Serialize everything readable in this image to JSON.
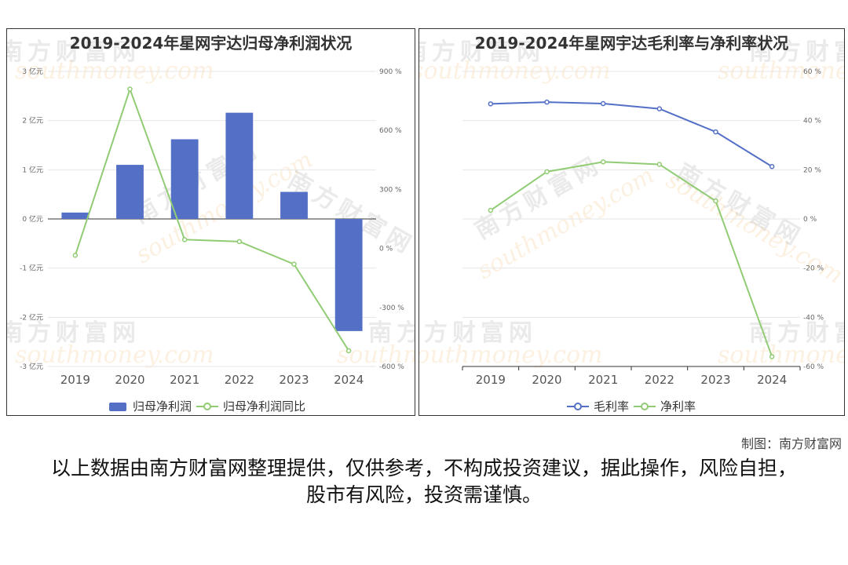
{
  "left_chart": {
    "title": "2019-2024年星网宇达归母净利润状况",
    "legend": [
      "归母净利润",
      "归母净利润同比"
    ]
  },
  "right_chart": {
    "title": "2019-2024年星网宇达毛利率与净利率状况",
    "legend": [
      "毛利率",
      "净利率"
    ]
  },
  "watermark": {
    "cn": "南方财富网",
    "en": "southmoney.com"
  },
  "credit": "制图：南方财富网",
  "disclaimer": "以上数据由南方财富网整理提供，仅供参考，不构成投资建议，据此操作，风险自担，股市有风险，投资需谨慎。",
  "colors": {
    "bar": "#5470c6",
    "line_green": "#91cc75",
    "line_blue": "#5470c6"
  },
  "chart_data": [
    {
      "type": "bar",
      "title": "2019-2024年星网宇达归母净利润状况",
      "categories": [
        "2019",
        "2020",
        "2021",
        "2022",
        "2023",
        "2024"
      ],
      "series": [
        {
          "name": "归母净利润",
          "type": "bar",
          "axis": "left",
          "values": [
            0.13,
            1.1,
            1.62,
            2.16,
            0.55,
            -2.28
          ]
        },
        {
          "name": "归母净利润同比",
          "type": "line",
          "axis": "right",
          "values": [
            -35,
            810,
            45,
            35,
            -80,
            -520
          ]
        }
      ],
      "y_left": {
        "ticks": [
          -3,
          -2,
          -1,
          0,
          1,
          2,
          3
        ],
        "labels": [
          "-3 亿元",
          "-2 亿元",
          "-1 亿元",
          "0 亿元",
          "1 亿元",
          "2 亿元",
          "3 亿元"
        ],
        "ylim": [
          -3,
          3
        ]
      },
      "y_right": {
        "ticks": [
          -600,
          -300,
          0,
          300,
          600,
          900
        ],
        "labels": [
          "-600 %",
          "-300 %",
          "0 %",
          "300 %",
          "600 %",
          "900 %"
        ],
        "ylim": [
          -600,
          900
        ]
      },
      "legend_position": "bottom"
    },
    {
      "type": "line",
      "title": "2019-2024年星网宇达毛利率与净利率状况",
      "categories": [
        "2019",
        "2020",
        "2021",
        "2022",
        "2023",
        "2024"
      ],
      "series": [
        {
          "name": "毛利率",
          "values": [
            46.8,
            47.5,
            46.9,
            44.8,
            35.4,
            21.3
          ]
        },
        {
          "name": "净利率",
          "values": [
            3.5,
            19.2,
            23.2,
            22.2,
            7.3,
            -56.0
          ]
        }
      ],
      "y_right": {
        "ticks": [
          -60,
          -40,
          -20,
          0,
          20,
          40,
          60
        ],
        "labels": [
          "-60 %",
          "-40 %",
          "-20 %",
          "0 %",
          "20 %",
          "40 %",
          "60 %"
        ],
        "ylim": [
          -60,
          60
        ]
      },
      "legend_position": "bottom"
    }
  ]
}
